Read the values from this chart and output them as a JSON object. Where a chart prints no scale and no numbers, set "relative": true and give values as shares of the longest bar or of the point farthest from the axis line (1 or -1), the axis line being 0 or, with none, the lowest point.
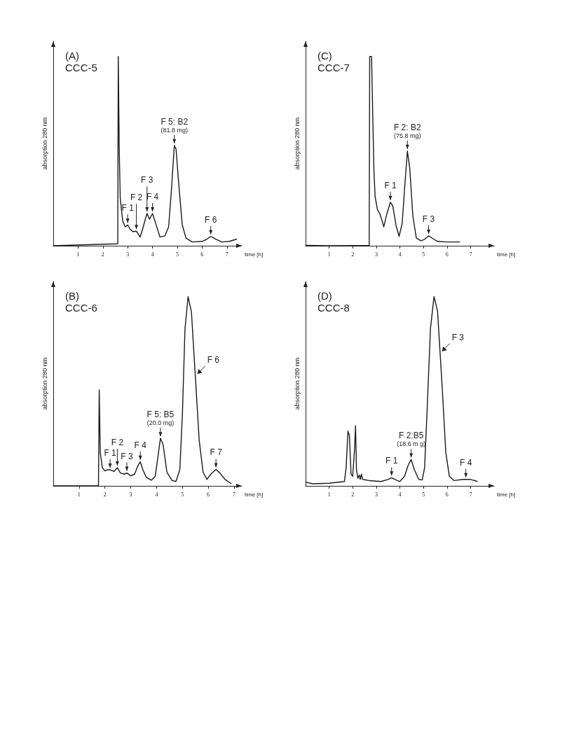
{
  "chart_data": [
    {
      "type": "line",
      "title": "(A)",
      "subtitle": "CCC-5",
      "xlabel": "time [h]",
      "ylabel": "absorption 280 nm",
      "relative": true,
      "xlim": [
        0,
        7.6
      ],
      "xticks": [
        1,
        2,
        3,
        4,
        5,
        6,
        7
      ],
      "color": "#1a1a1a",
      "x": [
        0,
        2.6,
        2.62,
        2.66,
        2.7,
        2.8,
        2.9,
        3.0,
        3.1,
        3.2,
        3.35,
        3.5,
        3.6,
        3.72,
        3.78,
        3.88,
        4.0,
        4.1,
        4.3,
        4.5,
        4.65,
        4.75,
        4.88,
        4.95,
        5.05,
        5.2,
        5.35,
        5.6,
        6.0,
        6.2,
        6.35,
        6.55,
        6.8,
        7.1,
        7.4
      ],
      "values": [
        0,
        0.01,
        1.0,
        0.5,
        0.25,
        0.13,
        0.1,
        0.11,
        0.087,
        0.075,
        0.077,
        0.046,
        0.087,
        0.145,
        0.17,
        0.14,
        0.17,
        0.13,
        0.046,
        0.052,
        0.1,
        0.27,
        0.53,
        0.51,
        0.34,
        0.11,
        0.04,
        0.02,
        0.023,
        0.035,
        0.049,
        0.035,
        0.02,
        0.023,
        0.035
      ],
      "annotations": [
        {
          "text": "F 1",
          "x": 3.0,
          "y": 0.11
        },
        {
          "text": "F 2",
          "x": 3.35,
          "y": 0.077
        },
        {
          "text": "F 3",
          "x": 3.78,
          "y": 0.17
        },
        {
          "text": "F 4",
          "x": 4.0,
          "y": 0.17
        },
        {
          "text": "F 5: B2\n(81.8 mg)",
          "x": 4.88,
          "y": 0.53
        },
        {
          "text": "F 6",
          "x": 6.35,
          "y": 0.049
        }
      ]
    },
    {
      "type": "line",
      "title": "(C)",
      "subtitle": "CCC-7",
      "xlabel": "time [h]",
      "ylabel": "absorption 280 nm",
      "relative": true,
      "xlim": [
        0,
        8
      ],
      "xticks": [
        1,
        2,
        3,
        4,
        5,
        6,
        7
      ],
      "color": "#1a1a1a",
      "x": [
        0,
        1,
        2.7,
        2.72,
        2.8,
        2.83,
        2.9,
        2.95,
        3.05,
        3.15,
        3.25,
        3.32,
        3.45,
        3.6,
        3.7,
        3.85,
        3.97,
        4.1,
        4.2,
        4.32,
        4.42,
        4.55,
        4.7,
        4.9,
        5.05,
        5.22,
        5.4,
        5.6,
        6.0,
        6.55
      ],
      "values": [
        0.002,
        0,
        0.002,
        1.0,
        1.0,
        0.81,
        0.4,
        0.26,
        0.19,
        0.17,
        0.13,
        0.1,
        0.17,
        0.23,
        0.21,
        0.1,
        0.05,
        0.12,
        0.3,
        0.5,
        0.41,
        0.16,
        0.04,
        0.026,
        0.034,
        0.052,
        0.038,
        0.023,
        0.02,
        0.02
      ],
      "annotations": [
        {
          "text": "F 1",
          "x": 3.6,
          "y": 0.23
        },
        {
          "text": "F 2: B2\n(75.8 mg)",
          "x": 4.32,
          "y": 0.5
        },
        {
          "text": "F 3",
          "x": 5.22,
          "y": 0.052
        }
      ]
    },
    {
      "type": "line",
      "title": "(B)",
      "subtitle": "CCC-6",
      "xlabel": "time [h]",
      "ylabel": "absorption 280 nm",
      "relative": true,
      "xlim": [
        0,
        7.3
      ],
      "xticks": [
        1,
        2,
        3,
        4,
        5,
        6,
        7
      ],
      "color": "#1a1a1a",
      "x": [
        0,
        1.75,
        1.78,
        1.82,
        1.9,
        2.0,
        2.1,
        2.2,
        2.35,
        2.48,
        2.6,
        2.75,
        2.85,
        3.0,
        3.15,
        3.28,
        3.37,
        3.47,
        3.6,
        3.8,
        3.95,
        4.05,
        4.15,
        4.25,
        4.4,
        4.6,
        4.75,
        4.9,
        5.0,
        5.1,
        5.22,
        5.35,
        5.5,
        5.65,
        5.8,
        5.95,
        6.1,
        6.3,
        6.45,
        6.65,
        6.9
      ],
      "values": [
        0,
        0,
        0.507,
        0.175,
        0.096,
        0.079,
        0.085,
        0.085,
        0.076,
        0.096,
        0.068,
        0.062,
        0.068,
        0.053,
        0.062,
        0.107,
        0.127,
        0.085,
        0.045,
        0.03,
        0.051,
        0.152,
        0.251,
        0.22,
        0.073,
        0.028,
        0.023,
        0.085,
        0.378,
        0.829,
        1.0,
        0.919,
        0.581,
        0.242,
        0.073,
        0.034,
        0.062,
        0.087,
        0.068,
        0.034,
        0.011
      ],
      "annotations": [
        {
          "text": "F 1",
          "x": 2.2,
          "y": 0.085
        },
        {
          "text": "F 2",
          "x": 2.48,
          "y": 0.096
        },
        {
          "text": "F 3",
          "x": 2.85,
          "y": 0.068
        },
        {
          "text": "F 4",
          "x": 3.37,
          "y": 0.127
        },
        {
          "text": "F 5: B5\n(20.0 mg)",
          "x": 4.15,
          "y": 0.251
        },
        {
          "text": "F 6",
          "x": 5.5,
          "y": 0.581
        },
        {
          "text": "F 7",
          "x": 6.3,
          "y": 0.087
        }
      ]
    },
    {
      "type": "line",
      "title": "(D)",
      "subtitle": "CCC-8",
      "xlabel": "time [h]",
      "ylabel": "absorption 280 nm",
      "relative": true,
      "xlim": [
        0,
        8
      ],
      "xticks": [
        1,
        2,
        3,
        4,
        5,
        6,
        7
      ],
      "color": "#1a1a1a",
      "x": [
        0,
        0.3,
        1,
        1.65,
        1.72,
        1.8,
        1.86,
        1.93,
        2.0,
        2.08,
        2.12,
        2.16,
        2.22,
        2.28,
        2.32,
        2.37,
        2.42,
        2.7,
        3.2,
        3.5,
        3.65,
        3.8,
        4.0,
        4.2,
        4.35,
        4.48,
        4.62,
        4.8,
        4.95,
        5.05,
        5.15,
        5.3,
        5.45,
        5.6,
        5.8,
        5.95,
        6.1,
        6.3,
        6.7,
        7.0,
        7.3
      ],
      "values": [
        0.02,
        0.011,
        0.014,
        0.023,
        0.096,
        0.289,
        0.266,
        0.062,
        0.051,
        0.198,
        0.317,
        0.085,
        0.04,
        0.057,
        0.034,
        0.062,
        0.034,
        0.028,
        0.023,
        0.034,
        0.043,
        0.034,
        0.023,
        0.051,
        0.108,
        0.139,
        0.085,
        0.034,
        0.031,
        0.096,
        0.379,
        0.832,
        1.0,
        0.923,
        0.515,
        0.176,
        0.051,
        0.028,
        0.034,
        0.034,
        0.023
      ],
      "annotations": [
        {
          "text": "F 1",
          "x": 3.65,
          "y": 0.043
        },
        {
          "text": "F 2:B5\n(18.6 m g)",
          "x": 4.48,
          "y": 0.139
        },
        {
          "text": "F 3",
          "x": 5.7,
          "y": 0.7
        },
        {
          "text": "F 4",
          "x": 6.8,
          "y": 0.034
        }
      ]
    }
  ]
}
